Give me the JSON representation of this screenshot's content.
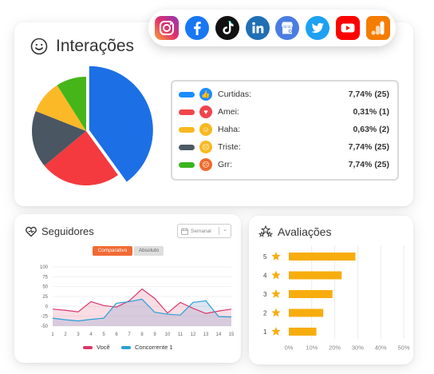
{
  "social_networks": [
    {
      "name": "instagram-icon",
      "color": "#e1306c"
    },
    {
      "name": "facebook-icon",
      "color": "#1877f2"
    },
    {
      "name": "tiktok-icon",
      "color": "#000000"
    },
    {
      "name": "linkedin-icon",
      "color": "#0a66c2"
    },
    {
      "name": "google-business-icon",
      "color": "#4a7de2"
    },
    {
      "name": "twitter-icon",
      "color": "#1da1f2"
    },
    {
      "name": "youtube-icon",
      "color": "#ff0000"
    },
    {
      "name": "google-analytics-icon",
      "color": "#f57c00"
    }
  ],
  "interacoes": {
    "title": "Interações",
    "reactions": [
      {
        "label": "Curtidas:",
        "value": "7,74% (25)",
        "color": "#1a8cff",
        "emoji_color": "#1a8cff",
        "emoji_name": "like-icon"
      },
      {
        "label": "Amei:",
        "value": "0,31% (1)",
        "color": "#f0454d",
        "emoji_color": "#f0454d",
        "emoji_name": "love-icon"
      },
      {
        "label": "Haha:",
        "value": "0,63% (2)",
        "color": "#f8b820",
        "emoji_color": "#f8b820",
        "emoji_name": "haha-icon"
      },
      {
        "label": "Triste:",
        "value": "7,74% (25)",
        "color": "#4d5a66",
        "emoji_color": "#f8b820",
        "emoji_name": "sad-icon"
      },
      {
        "label": "Grr:",
        "value": "7,74% (25)",
        "color": "#3cb521",
        "emoji_color": "#f06a2a",
        "emoji_name": "angry-icon"
      }
    ]
  },
  "pie_chart": {
    "type": "pie",
    "slices": [
      {
        "share": 0.4,
        "color": "#1d6fe6"
      },
      {
        "share": 0.24,
        "color": "#f43a3f"
      },
      {
        "share": 0.17,
        "color": "#4a5662"
      },
      {
        "share": 0.1,
        "color": "#fbb928"
      },
      {
        "share": 0.09,
        "color": "#46b51a"
      }
    ]
  },
  "seguidores": {
    "title": "Seguidores",
    "period": "Semanal",
    "toggle_active": "Comparativo",
    "toggle_inactive": "Absoluto"
  },
  "chart_data": [
    {
      "type": "line",
      "x": [
        1,
        2,
        3,
        4,
        5,
        6,
        7,
        8,
        9,
        10,
        11,
        12,
        13,
        14,
        15
      ],
      "ylim": [
        -50,
        100
      ],
      "y_ticks": [
        100,
        75,
        50,
        25,
        0,
        -25,
        -50
      ],
      "series": [
        {
          "name": "Você",
          "color": "#d9386a",
          "fill": "rgba(230,120,150,0.25)",
          "values": [
            -7,
            -10,
            -14,
            12,
            2,
            -2,
            14,
            44,
            20,
            -17,
            10,
            -5,
            -18,
            -12,
            -7
          ]
        },
        {
          "name": "Concorrente 1",
          "color": "#2a9fd6",
          "fill": "rgba(120,150,200,0.25)",
          "values": [
            -30,
            -34,
            -37,
            -33,
            -30,
            8,
            12,
            18,
            -15,
            -20,
            -22,
            10,
            14,
            -26,
            -27
          ]
        }
      ]
    },
    {
      "type": "bar",
      "title": "Avaliações",
      "orientation": "horizontal",
      "categories": [
        "5",
        "4",
        "3",
        "2",
        "1"
      ],
      "values": [
        29,
        23,
        19,
        15,
        12
      ],
      "xlim": [
        0,
        50
      ],
      "x_ticks": [
        "0%",
        "10%",
        "20%",
        "30%",
        "40%",
        "50%"
      ],
      "color": "#f7ad0e"
    }
  ]
}
